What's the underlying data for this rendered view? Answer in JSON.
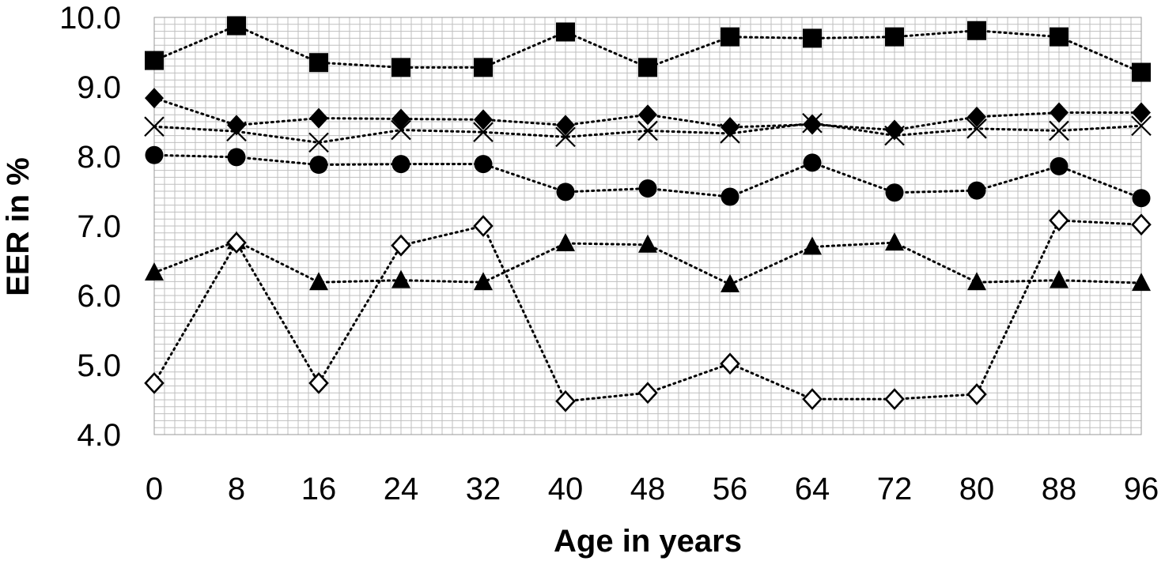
{
  "chart_data": {
    "type": "line",
    "xlabel": "Age in years",
    "ylabel": "EER in %",
    "categories": [
      "0",
      "8",
      "16",
      "24",
      "32",
      "40",
      "48",
      "56",
      "64",
      "72",
      "80",
      "88",
      "96"
    ],
    "y_tick_labels": [
      "4.0",
      "5.0",
      "6.0",
      "7.0",
      "8.0",
      "9.0",
      "10.0"
    ],
    "ylim": [
      4.0,
      10.0
    ],
    "grid": true,
    "legend": "none",
    "line_style": "dotted",
    "colors": {
      "line": "#000000",
      "grid": "#bfbfbf",
      "marker": "#000000",
      "open_marker_fill": "#ffffff"
    },
    "series": [
      {
        "marker": "square",
        "values": [
          9.38,
          9.88,
          9.35,
          9.28,
          9.28,
          9.79,
          9.28,
          9.72,
          9.7,
          9.72,
          9.81,
          9.72,
          9.21
        ]
      },
      {
        "marker": "diamond",
        "values": [
          8.84,
          8.45,
          8.55,
          8.54,
          8.53,
          8.45,
          8.6,
          8.42,
          8.46,
          8.38,
          8.57,
          8.63,
          8.63
        ]
      },
      {
        "marker": "x",
        "values": [
          8.43,
          8.36,
          8.2,
          8.38,
          8.35,
          8.28,
          8.37,
          8.33,
          8.48,
          8.3,
          8.4,
          8.37,
          8.44
        ]
      },
      {
        "marker": "circle",
        "values": [
          8.02,
          7.99,
          7.88,
          7.89,
          7.89,
          7.49,
          7.54,
          7.42,
          7.91,
          7.48,
          7.51,
          7.86,
          7.4
        ]
      },
      {
        "marker": "triangle",
        "values": [
          6.33,
          6.78,
          6.19,
          6.22,
          6.19,
          6.75,
          6.73,
          6.16,
          6.7,
          6.76,
          6.19,
          6.22,
          6.18
        ]
      },
      {
        "marker": "open-diamond",
        "values": [
          4.74,
          6.76,
          4.74,
          6.72,
          7.0,
          4.48,
          4.6,
          5.02,
          4.51,
          4.51,
          4.58,
          7.08,
          7.02
        ]
      }
    ]
  }
}
